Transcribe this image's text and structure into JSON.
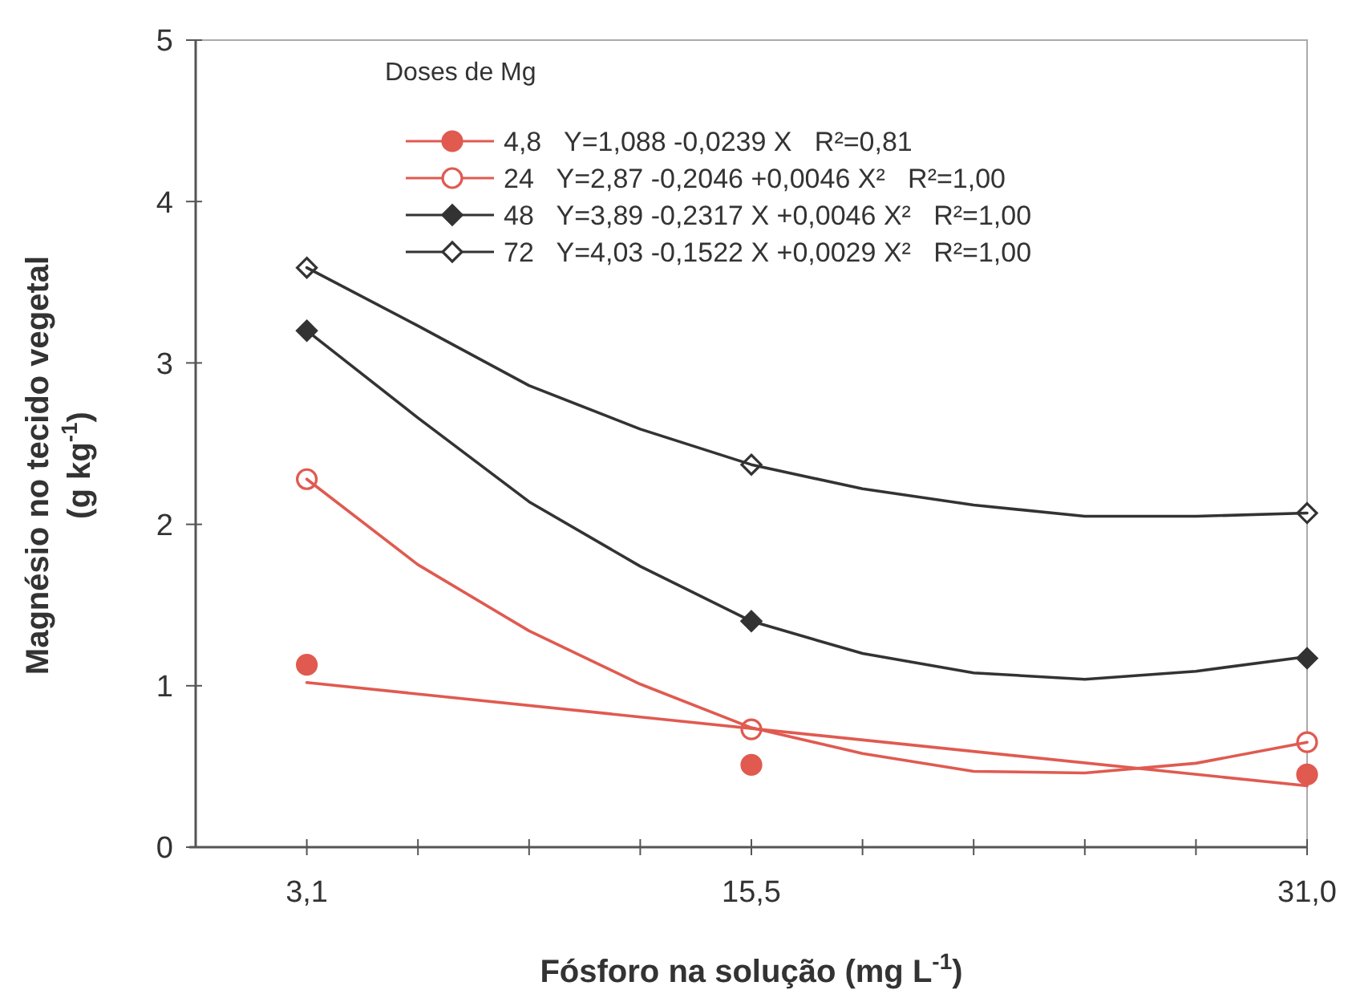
{
  "chart_data": {
    "type": "line",
    "xlabel": "Fósforo na solução (mg L$^{-1}$)",
    "ylabel": "Magnésio no tecido vegetal (g kg$^{-1}$)",
    "legend_title": "Doses de Mg",
    "legend": "top right",
    "grid": false,
    "xlim": [
      0,
      31
    ],
    "xticks": [
      {
        "value": 3.1,
        "label": "3,1"
      },
      {
        "value": 6.2,
        "label": null
      },
      {
        "value": 9.3,
        "label": null
      },
      {
        "value": 12.4,
        "label": null
      },
      {
        "value": 15.5,
        "label": "15,5"
      },
      {
        "value": 18.6,
        "label": null
      },
      {
        "value": 21.7,
        "label": null
      },
      {
        "value": 24.8,
        "label": null
      },
      {
        "value": 27.9,
        "label": null
      },
      {
        "value": 31,
        "label": "31,0"
      }
    ],
    "ylim": [
      0,
      5
    ],
    "yticks": [
      0,
      1,
      2,
      3,
      4,
      5
    ],
    "series": [
      {
        "name": "4,8   Y=1,088 -0,0239 X   R²=0,81",
        "type": "scatter",
        "marker": "circle",
        "color": "#e05a50",
        "x": [
          3.1,
          15.5,
          31
        ],
        "values": [
          1.13,
          0.51,
          0.45
        ]
      },
      {
        "name": "24   Y=2,87 -0,2046 +0,0046 X²   R²=1,00",
        "type": "scatter",
        "marker": "circle-open",
        "color": "#e05a50",
        "x": [
          3.1,
          15.5,
          31
        ],
        "values": [
          2.28,
          0.73,
          0.65
        ]
      },
      {
        "name": "48   Y=3,89 -0,2317 X +0,0046 X²   R²=1,00",
        "type": "scatter",
        "marker": "diamond",
        "color": "#333333",
        "x": [
          3.1,
          15.5,
          31
        ],
        "values": [
          3.2,
          1.4,
          1.17
        ]
      },
      {
        "name": "72   Y=4,03 -0,1522 X +0,0029 X²   R²=1,00",
        "type": "scatter",
        "marker": "diamond-open",
        "color": "#333333",
        "x": [
          3.1,
          15.5,
          31
        ],
        "values": [
          3.59,
          2.37,
          2.07
        ]
      },
      {
        "marker": "none",
        "color": "#e05a50",
        "x": [
          3.1,
          31
        ],
        "values": [
          1.02,
          0.38
        ]
      },
      {
        "marker": "none",
        "color": "#e05a50",
        "x": [
          3.1,
          6.2,
          9.3,
          12.4,
          15.5,
          18.6,
          21.7,
          24.8,
          27.9,
          31
        ],
        "values": [
          2.28,
          1.75,
          1.34,
          1.01,
          0.74,
          0.58,
          0.47,
          0.46,
          0.52,
          0.65
        ]
      },
      {
        "marker": "none",
        "color": "#333333",
        "x": [
          3.1,
          6.2,
          9.3,
          12.4,
          15.5,
          18.6,
          21.7,
          24.8,
          27.9,
          31
        ],
        "values": [
          3.2,
          2.66,
          2.14,
          1.74,
          1.4,
          1.2,
          1.08,
          1.04,
          1.09,
          1.18
        ]
      },
      {
        "marker": "none",
        "color": "#333333",
        "x": [
          3.1,
          6.2,
          9.3,
          12.4,
          15.5,
          18.6,
          21.7,
          24.8,
          27.9,
          31
        ],
        "values": [
          3.59,
          3.23,
          2.86,
          2.59,
          2.37,
          2.22,
          2.12,
          2.05,
          2.05,
          2.07
        ]
      }
    ]
  }
}
